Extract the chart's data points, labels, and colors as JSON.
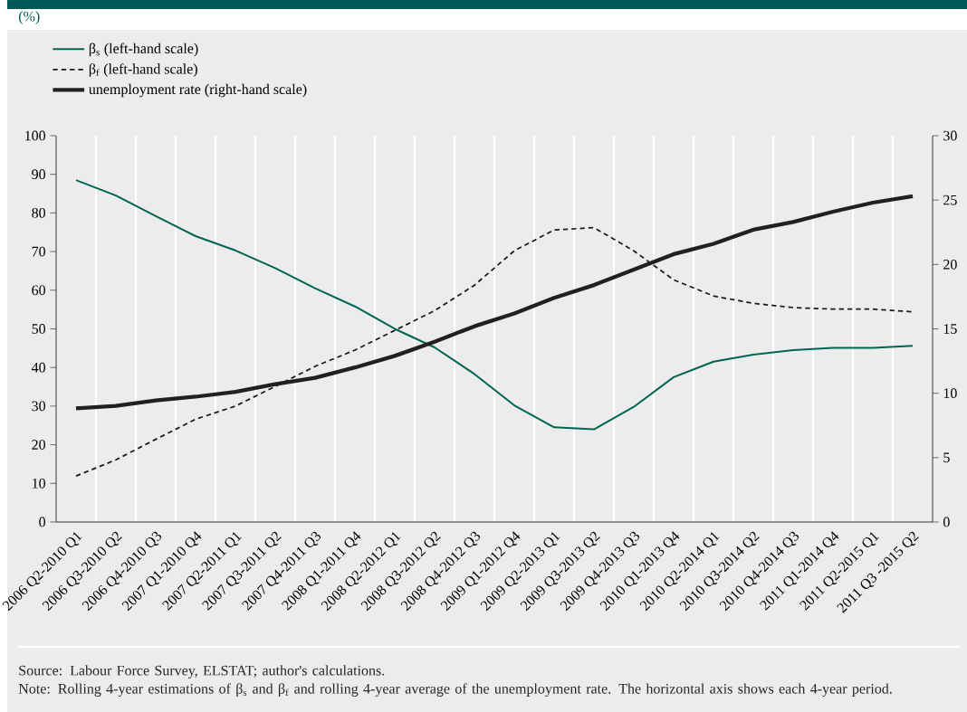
{
  "chart_data": {
    "type": "line",
    "categories": [
      "2006 Q2-2010 Q1",
      "2006 Q3-2010 Q2",
      "2006 Q4-2010 Q3",
      "2007 Q1-2010 Q4",
      "2007 Q2-2011 Q1",
      "2007 Q3-2011 Q2",
      "2007 Q4-2011 Q3",
      "2008 Q1-2011 Q4",
      "2008 Q2-2012 Q1",
      "2008 Q3-2012 Q2",
      "2008 Q4-2012 Q3",
      "2009 Q1-2012 Q4",
      "2009 Q2-2013 Q1",
      "2009 Q3-2013 Q2",
      "2009 Q4-2013 Q3",
      "2010 Q1-2013 Q4",
      "2010 Q2-2014 Q1",
      "2010 Q3-2014 Q2",
      "2010 Q4-2014 Q3",
      "2011 Q1-2014 Q4",
      "2011 Q2-2015 Q1",
      "2011 Q3 -2015 Q2"
    ],
    "series": [
      {
        "name": "β$_{s}$ (left-hand scale)",
        "color": "#00664f",
        "line_style": "solid",
        "values": [
          88.5,
          84.5,
          79.2,
          74,
          70.3,
          65.7,
          60.5,
          55.8,
          50,
          45.2,
          38.3,
          30.2,
          24.5,
          24.0,
          29.8,
          37.5,
          41.5,
          43.3,
          44.5,
          45.1,
          45.1,
          45.6
        ]
      },
      {
        "name": "β$_{f}$ (left-hand scale)",
        "color": "#1a1a1a",
        "line_style": "dashed",
        "values": [
          11.9,
          16.1,
          21.4,
          26.6,
          30,
          35.1,
          40.3,
          44.5,
          49.6,
          54.7,
          61.3,
          70.2,
          75.6,
          76.2,
          70.2,
          62.7,
          58.5,
          56.6,
          55.5,
          55.1,
          55.1,
          54.4
        ]
      },
      {
        "name": "unemployment rate (right-hand scale)",
        "color": "#231f20",
        "line_style": "solid",
        "axis": "y2",
        "values": [
          8.83,
          9.02,
          9.44,
          9.73,
          10.11,
          10.7,
          11.2,
          12.0,
          12.9,
          14.0,
          15.2,
          16.2,
          17.4,
          18.4,
          19.6,
          20.8,
          21.6,
          22.7,
          23.3,
          24.1,
          24.8,
          25.3
        ]
      }
    ],
    "ylim": [
      0,
      100
    ],
    "yticks": [
      0,
      10,
      20,
      30,
      40,
      50,
      60,
      70,
      80,
      90,
      100
    ],
    "y2lim": [
      0,
      30
    ],
    "y2ticks": [
      0,
      5,
      10,
      15,
      20,
      25,
      30
    ],
    "grid": "x",
    "legend": "top left",
    "annotations": [
      "(%)",
      "Source: Labour Force Survey, ELSTAT; author's calculations.",
      "Note: Rolling 4-year estimations of β$_{s}$ and β$_{f}$ and rolling 4-year average of the unemployment rate. The horizontal axis shows each 4-year period."
    ]
  }
}
